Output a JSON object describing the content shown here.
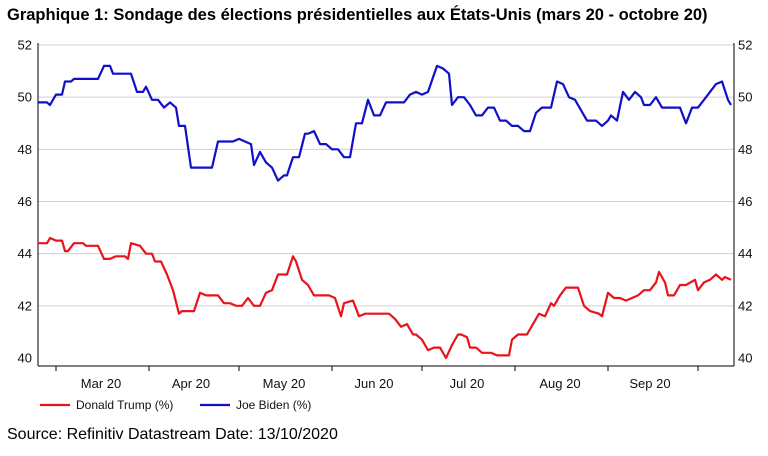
{
  "title": "Graphique 1: Sondage des élections présidentielles aux États-Unis (mars 20 - octobre 20)",
  "source": "Source: Refinitiv Datastream Date: 13/10/2020",
  "chart_data": {
    "type": "line",
    "title": "Graphique 1: Sondage des élections présidentielles aux États-Unis (mars 20 - octobre 20)",
    "xlabel": "",
    "ylabel": "",
    "ylim": [
      40,
      52
    ],
    "yticks": [
      40,
      42,
      44,
      46,
      48,
      50,
      52
    ],
    "xlim": [
      "2020-02-24",
      "2020-10-13"
    ],
    "month_labels": [
      {
        "date": "2020-03-16",
        "label": "Mar 20"
      },
      {
        "date": "2020-04-15",
        "label": "Apr 20"
      },
      {
        "date": "2020-05-16",
        "label": "May 20"
      },
      {
        "date": "2020-06-15",
        "label": "Jun 20"
      },
      {
        "date": "2020-07-16",
        "label": "Jul 20"
      },
      {
        "date": "2020-08-16",
        "label": "Aug 20"
      },
      {
        "date": "2020-09-15",
        "label": "Sep 20"
      }
    ],
    "month_ticks": [
      "2020-03-01",
      "2020-04-01",
      "2020-05-01",
      "2020-06-01",
      "2020-07-01",
      "2020-08-01",
      "2020-09-01",
      "2020-10-01"
    ],
    "grid": "horizontal",
    "legend_position": "bottom-left",
    "series": [
      {
        "name": "Donald Trump (%)",
        "color": "#e8141b",
        "points": [
          [
            "2020-02-24",
            44.4
          ],
          [
            "2020-02-27",
            44.4
          ],
          [
            "2020-02-28",
            44.6
          ],
          [
            "2020-03-01",
            44.5
          ],
          [
            "2020-03-03",
            44.5
          ],
          [
            "2020-03-04",
            44.1
          ],
          [
            "2020-03-05",
            44.1
          ],
          [
            "2020-03-07",
            44.4
          ],
          [
            "2020-03-10",
            44.4
          ],
          [
            "2020-03-11",
            44.3
          ],
          [
            "2020-03-15",
            44.3
          ],
          [
            "2020-03-17",
            43.8
          ],
          [
            "2020-03-19",
            43.8
          ],
          [
            "2020-03-21",
            43.9
          ],
          [
            "2020-03-24",
            43.9
          ],
          [
            "2020-03-25",
            43.8
          ],
          [
            "2020-03-26",
            44.4
          ],
          [
            "2020-03-29",
            44.3
          ],
          [
            "2020-03-31",
            44.0
          ],
          [
            "2020-04-02",
            44.0
          ],
          [
            "2020-04-03",
            43.7
          ],
          [
            "2020-04-05",
            43.7
          ],
          [
            "2020-04-07",
            43.2
          ],
          [
            "2020-04-09",
            42.6
          ],
          [
            "2020-04-11",
            41.7
          ],
          [
            "2020-04-12",
            41.8
          ],
          [
            "2020-04-16",
            41.8
          ],
          [
            "2020-04-18",
            42.5
          ],
          [
            "2020-04-20",
            42.4
          ],
          [
            "2020-04-24",
            42.4
          ],
          [
            "2020-04-26",
            42.1
          ],
          [
            "2020-04-28",
            42.1
          ],
          [
            "2020-04-30",
            42.0
          ],
          [
            "2020-05-02",
            42.0
          ],
          [
            "2020-05-04",
            42.3
          ],
          [
            "2020-05-06",
            42.0
          ],
          [
            "2020-05-08",
            42.0
          ],
          [
            "2020-05-10",
            42.5
          ],
          [
            "2020-05-12",
            42.6
          ],
          [
            "2020-05-14",
            43.2
          ],
          [
            "2020-05-17",
            43.2
          ],
          [
            "2020-05-19",
            43.9
          ],
          [
            "2020-05-20",
            43.7
          ],
          [
            "2020-05-22",
            43.0
          ],
          [
            "2020-05-24",
            42.8
          ],
          [
            "2020-05-26",
            42.4
          ],
          [
            "2020-05-28",
            42.4
          ],
          [
            "2020-05-31",
            42.4
          ],
          [
            "2020-06-02",
            42.3
          ],
          [
            "2020-06-04",
            41.6
          ],
          [
            "2020-06-05",
            42.1
          ],
          [
            "2020-06-08",
            42.2
          ],
          [
            "2020-06-10",
            41.6
          ],
          [
            "2020-06-12",
            41.7
          ],
          [
            "2020-06-20",
            41.7
          ],
          [
            "2020-06-22",
            41.5
          ],
          [
            "2020-06-24",
            41.2
          ],
          [
            "2020-06-26",
            41.3
          ],
          [
            "2020-06-28",
            40.9
          ],
          [
            "2020-06-29",
            40.9
          ],
          [
            "2020-07-01",
            40.7
          ],
          [
            "2020-07-03",
            40.3
          ],
          [
            "2020-07-05",
            40.4
          ],
          [
            "2020-07-07",
            40.4
          ],
          [
            "2020-07-09",
            40.0
          ],
          [
            "2020-07-11",
            40.5
          ],
          [
            "2020-07-13",
            40.9
          ],
          [
            "2020-07-14",
            40.9
          ],
          [
            "2020-07-16",
            40.8
          ],
          [
            "2020-07-17",
            40.4
          ],
          [
            "2020-07-19",
            40.4
          ],
          [
            "2020-07-21",
            40.2
          ],
          [
            "2020-07-24",
            40.2
          ],
          [
            "2020-07-26",
            40.1
          ],
          [
            "2020-07-30",
            40.1
          ],
          [
            "2020-07-31",
            40.7
          ],
          [
            "2020-08-02",
            40.9
          ],
          [
            "2020-08-05",
            40.9
          ],
          [
            "2020-08-07",
            41.3
          ],
          [
            "2020-08-09",
            41.7
          ],
          [
            "2020-08-11",
            41.6
          ],
          [
            "2020-08-13",
            42.1
          ],
          [
            "2020-08-14",
            42.0
          ],
          [
            "2020-08-16",
            42.4
          ],
          [
            "2020-08-18",
            42.7
          ],
          [
            "2020-08-22",
            42.7
          ],
          [
            "2020-08-24",
            42.0
          ],
          [
            "2020-08-26",
            41.8
          ],
          [
            "2020-08-29",
            41.7
          ],
          [
            "2020-08-30",
            41.6
          ],
          [
            "2020-09-01",
            42.5
          ],
          [
            "2020-09-03",
            42.3
          ],
          [
            "2020-09-05",
            42.3
          ],
          [
            "2020-09-07",
            42.2
          ],
          [
            "2020-09-09",
            42.3
          ],
          [
            "2020-09-11",
            42.4
          ],
          [
            "2020-09-13",
            42.6
          ],
          [
            "2020-09-15",
            42.6
          ],
          [
            "2020-09-17",
            42.9
          ],
          [
            "2020-09-18",
            43.3
          ],
          [
            "2020-09-20",
            42.9
          ],
          [
            "2020-09-21",
            42.4
          ],
          [
            "2020-09-23",
            42.4
          ],
          [
            "2020-09-25",
            42.8
          ],
          [
            "2020-09-27",
            42.8
          ],
          [
            "2020-09-30",
            43.0
          ],
          [
            "2020-10-01",
            42.6
          ],
          [
            "2020-10-03",
            42.9
          ],
          [
            "2020-10-05",
            43.0
          ],
          [
            "2020-10-07",
            43.2
          ],
          [
            "2020-10-09",
            43.0
          ],
          [
            "2020-10-10",
            43.1
          ],
          [
            "2020-10-12",
            43.0
          ]
        ]
      },
      {
        "name": "Joe Biden (%)",
        "color": "#1010c8",
        "points": [
          [
            "2020-02-24",
            49.8
          ],
          [
            "2020-02-27",
            49.8
          ],
          [
            "2020-02-28",
            49.7
          ],
          [
            "2020-03-01",
            50.1
          ],
          [
            "2020-03-03",
            50.1
          ],
          [
            "2020-03-04",
            50.6
          ],
          [
            "2020-03-06",
            50.6
          ],
          [
            "2020-03-07",
            50.7
          ],
          [
            "2020-03-15",
            50.7
          ],
          [
            "2020-03-17",
            51.2
          ],
          [
            "2020-03-19",
            51.2
          ],
          [
            "2020-03-20",
            50.9
          ],
          [
            "2020-03-26",
            50.9
          ],
          [
            "2020-03-28",
            50.2
          ],
          [
            "2020-03-30",
            50.2
          ],
          [
            "2020-03-31",
            50.4
          ],
          [
            "2020-04-02",
            49.9
          ],
          [
            "2020-04-04",
            49.9
          ],
          [
            "2020-04-06",
            49.6
          ],
          [
            "2020-04-08",
            49.8
          ],
          [
            "2020-04-10",
            49.6
          ],
          [
            "2020-04-11",
            48.9
          ],
          [
            "2020-04-13",
            48.9
          ],
          [
            "2020-04-15",
            47.3
          ],
          [
            "2020-04-22",
            47.3
          ],
          [
            "2020-04-24",
            48.3
          ],
          [
            "2020-04-29",
            48.3
          ],
          [
            "2020-05-01",
            48.4
          ],
          [
            "2020-05-03",
            48.3
          ],
          [
            "2020-05-05",
            48.2
          ],
          [
            "2020-05-06",
            47.4
          ],
          [
            "2020-05-08",
            47.9
          ],
          [
            "2020-05-10",
            47.5
          ],
          [
            "2020-05-12",
            47.3
          ],
          [
            "2020-05-14",
            46.8
          ],
          [
            "2020-05-16",
            47.0
          ],
          [
            "2020-05-17",
            47.0
          ],
          [
            "2020-05-19",
            47.7
          ],
          [
            "2020-05-21",
            47.7
          ],
          [
            "2020-05-23",
            48.6
          ],
          [
            "2020-05-24",
            48.6
          ],
          [
            "2020-05-26",
            48.7
          ],
          [
            "2020-05-28",
            48.2
          ],
          [
            "2020-05-30",
            48.2
          ],
          [
            "2020-06-01",
            48.0
          ],
          [
            "2020-06-03",
            48.0
          ],
          [
            "2020-06-05",
            47.7
          ],
          [
            "2020-06-07",
            47.7
          ],
          [
            "2020-06-09",
            49.0
          ],
          [
            "2020-06-11",
            49.0
          ],
          [
            "2020-06-13",
            49.9
          ],
          [
            "2020-06-15",
            49.3
          ],
          [
            "2020-06-17",
            49.3
          ],
          [
            "2020-06-19",
            49.8
          ],
          [
            "2020-06-23",
            49.8
          ],
          [
            "2020-06-25",
            49.8
          ],
          [
            "2020-06-27",
            50.1
          ],
          [
            "2020-06-29",
            50.2
          ],
          [
            "2020-07-01",
            50.1
          ],
          [
            "2020-07-03",
            50.2
          ],
          [
            "2020-07-06",
            51.2
          ],
          [
            "2020-07-08",
            51.1
          ],
          [
            "2020-07-10",
            50.9
          ],
          [
            "2020-07-11",
            49.7
          ],
          [
            "2020-07-13",
            50.0
          ],
          [
            "2020-07-15",
            50.0
          ],
          [
            "2020-07-17",
            49.7
          ],
          [
            "2020-07-19",
            49.3
          ],
          [
            "2020-07-21",
            49.3
          ],
          [
            "2020-07-23",
            49.6
          ],
          [
            "2020-07-25",
            49.6
          ],
          [
            "2020-07-27",
            49.1
          ],
          [
            "2020-07-29",
            49.1
          ],
          [
            "2020-07-31",
            48.9
          ],
          [
            "2020-08-02",
            48.9
          ],
          [
            "2020-08-04",
            48.7
          ],
          [
            "2020-08-06",
            48.7
          ],
          [
            "2020-08-08",
            49.4
          ],
          [
            "2020-08-10",
            49.6
          ],
          [
            "2020-08-13",
            49.6
          ],
          [
            "2020-08-15",
            50.6
          ],
          [
            "2020-08-17",
            50.5
          ],
          [
            "2020-08-19",
            50.0
          ],
          [
            "2020-08-21",
            49.9
          ],
          [
            "2020-08-23",
            49.5
          ],
          [
            "2020-08-25",
            49.1
          ],
          [
            "2020-08-28",
            49.1
          ],
          [
            "2020-08-30",
            48.9
          ],
          [
            "2020-09-01",
            49.1
          ],
          [
            "2020-09-02",
            49.3
          ],
          [
            "2020-09-04",
            49.1
          ],
          [
            "2020-09-06",
            50.2
          ],
          [
            "2020-09-08",
            49.9
          ],
          [
            "2020-09-10",
            50.2
          ],
          [
            "2020-09-12",
            50.0
          ],
          [
            "2020-09-13",
            49.7
          ],
          [
            "2020-09-15",
            49.7
          ],
          [
            "2020-09-17",
            50.0
          ],
          [
            "2020-09-19",
            49.6
          ],
          [
            "2020-09-23",
            49.6
          ],
          [
            "2020-09-25",
            49.6
          ],
          [
            "2020-09-27",
            49.0
          ],
          [
            "2020-09-29",
            49.6
          ],
          [
            "2020-10-01",
            49.6
          ],
          [
            "2020-10-03",
            49.9
          ],
          [
            "2020-10-05",
            50.2
          ],
          [
            "2020-10-07",
            50.5
          ],
          [
            "2020-10-09",
            50.6
          ],
          [
            "2020-10-11",
            49.9
          ],
          [
            "2020-10-12",
            49.7
          ]
        ]
      }
    ]
  }
}
